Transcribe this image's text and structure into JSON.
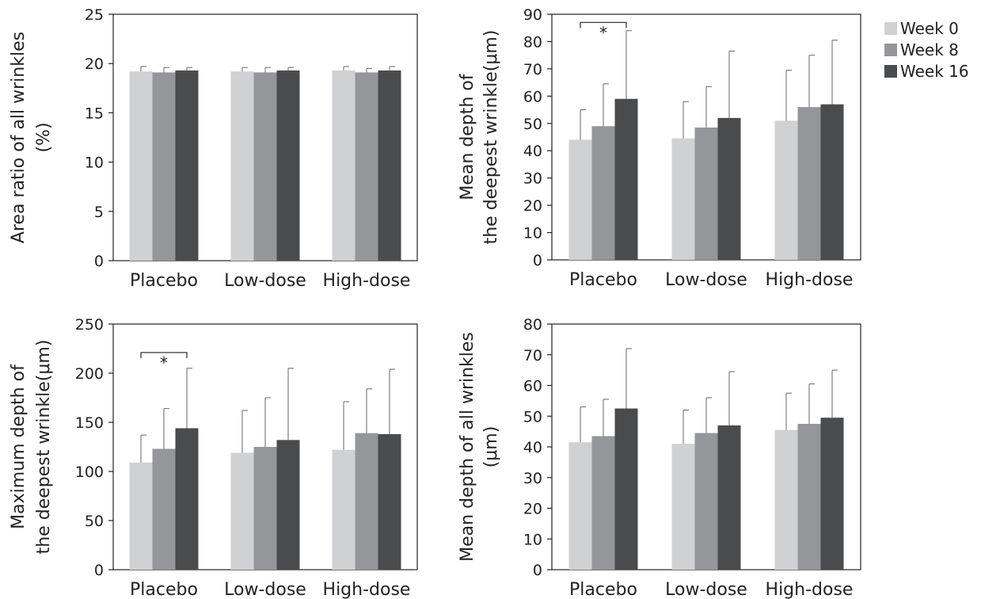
{
  "legend": [
    {
      "name": "Week 0",
      "color": "#d0d1d3"
    },
    {
      "name": "Week 8",
      "color": "#959699"
    },
    {
      "name": "Week 16",
      "color": "#4a4b4d"
    }
  ],
  "chart_data": [
    {
      "type": "bar",
      "categories": [
        "Placebo",
        "Low-dose",
        "High-dose"
      ],
      "ylabel": [
        "Area ratio of all wrinkles",
        "(%)"
      ],
      "ylim": [
        0,
        25
      ],
      "yticks": [
        0,
        5,
        10,
        15,
        20,
        25
      ],
      "series": [
        {
          "name": "Week 0",
          "values": [
            19.2,
            19.2,
            19.3
          ],
          "errors": [
            0.5,
            0.4,
            0.4
          ]
        },
        {
          "name": "Week 8",
          "values": [
            19.1,
            19.1,
            19.1
          ],
          "errors": [
            0.5,
            0.5,
            0.4
          ]
        },
        {
          "name": "Week 16",
          "values": [
            19.3,
            19.3,
            19.3
          ],
          "errors": [
            0.3,
            0.3,
            0.4
          ]
        }
      ],
      "annotations": []
    },
    {
      "type": "bar",
      "categories": [
        "Placebo",
        "Low-dose",
        "High-dose"
      ],
      "ylabel": [
        "Mean depth of",
        "the deepest wrinkle(μm)"
      ],
      "ylim": [
        0,
        90
      ],
      "yticks": [
        0,
        10,
        20,
        30,
        40,
        50,
        60,
        70,
        80,
        90
      ],
      "series": [
        {
          "name": "Week 0",
          "values": [
            44,
            44.5,
            51
          ],
          "errors": [
            11,
            13.5,
            18.5
          ]
        },
        {
          "name": "Week 8",
          "values": [
            49,
            48.5,
            56
          ],
          "errors": [
            15.5,
            15,
            19
          ]
        },
        {
          "name": "Week 16",
          "values": [
            59,
            52,
            57
          ],
          "errors": [
            25,
            24.5,
            23.5
          ]
        }
      ],
      "annotations": [
        {
          "label": "*",
          "category": 0,
          "from": 0,
          "to": 2,
          "y": 87
        }
      ]
    },
    {
      "type": "bar",
      "categories": [
        "Placebo",
        "Low-dose",
        "High-dose"
      ],
      "ylabel": [
        "Maximum depth of",
        "the deepest wrinkle(μm)"
      ],
      "ylim": [
        0,
        250
      ],
      "yticks": [
        0,
        50,
        100,
        150,
        200,
        250
      ],
      "series": [
        {
          "name": "Week 0",
          "values": [
            109,
            119,
            122
          ],
          "errors": [
            28,
            43,
            49
          ]
        },
        {
          "name": "Week 8",
          "values": [
            123,
            125,
            139
          ],
          "errors": [
            41,
            50,
            45
          ]
        },
        {
          "name": "Week 16",
          "values": [
            144,
            132,
            138
          ],
          "errors": [
            61,
            73,
            66
          ]
        }
      ],
      "annotations": [
        {
          "label": "*",
          "category": 0,
          "from": 0,
          "to": 2,
          "y": 221
        }
      ]
    },
    {
      "type": "bar",
      "categories": [
        "Placebo",
        "Low-dose",
        "High-dose"
      ],
      "ylabel": [
        "Mean depth of all wrinkles",
        "(μm)"
      ],
      "ylim": [
        0,
        80
      ],
      "yticks": [
        0,
        10,
        20,
        30,
        40,
        50,
        60,
        70,
        80
      ],
      "series": [
        {
          "name": "Week 0",
          "values": [
            41.5,
            41,
            45.5
          ],
          "errors": [
            11.5,
            11,
            12
          ]
        },
        {
          "name": "Week 8",
          "values": [
            43.5,
            44.5,
            47.5
          ],
          "errors": [
            12,
            11.5,
            13
          ]
        },
        {
          "name": "Week 16",
          "values": [
            52.5,
            47,
            49.5
          ],
          "errors": [
            19.5,
            17.5,
            15.5
          ]
        }
      ],
      "annotations": []
    }
  ]
}
